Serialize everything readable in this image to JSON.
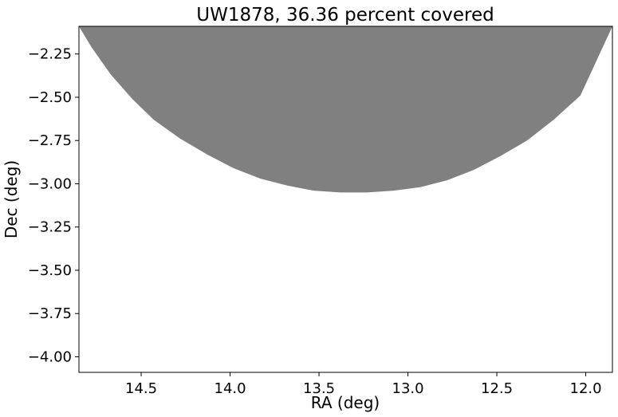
{
  "chart_data": {
    "type": "area",
    "title": "UW1878, 36.36 percent covered",
    "xlabel": "RA (deg)",
    "ylabel": "Dec (deg)",
    "xlim": [
      14.85,
      11.85
    ],
    "ylim": [
      -4.09,
      -2.09
    ],
    "x_inverted": true,
    "xticks": [
      14.5,
      14.0,
      13.5,
      13.0,
      12.5,
      12.0
    ],
    "xtick_labels": [
      "14.5",
      "14.0",
      "13.5",
      "13.0",
      "12.5",
      "12.0"
    ],
    "yticks": [
      -2.25,
      -2.5,
      -2.75,
      -3.0,
      -3.25,
      -3.5,
      -3.75,
      -4.0
    ],
    "ytick_labels": [
      "−2.25",
      "−2.50",
      "−2.75",
      "−3.00",
      "−3.25",
      "−3.50",
      "−3.75",
      "−4.00"
    ],
    "grid": false,
    "series": [
      {
        "fill_color": "#808080",
        "boundary": {
          "x": [
            14.85,
            14.78,
            14.67,
            14.55,
            14.43,
            14.28,
            14.13,
            13.98,
            13.83,
            13.68,
            13.53,
            13.38,
            13.23,
            13.08,
            12.93,
            12.78,
            12.63,
            12.48,
            12.33,
            12.18,
            12.03,
            11.85
          ],
          "y": [
            -2.09,
            -2.21,
            -2.37,
            -2.51,
            -2.63,
            -2.74,
            -2.83,
            -2.91,
            -2.97,
            -3.01,
            -3.04,
            -3.05,
            -3.05,
            -3.04,
            -3.02,
            -2.98,
            -2.92,
            -2.84,
            -2.75,
            -2.63,
            -2.49,
            -2.09
          ]
        }
      }
    ]
  }
}
